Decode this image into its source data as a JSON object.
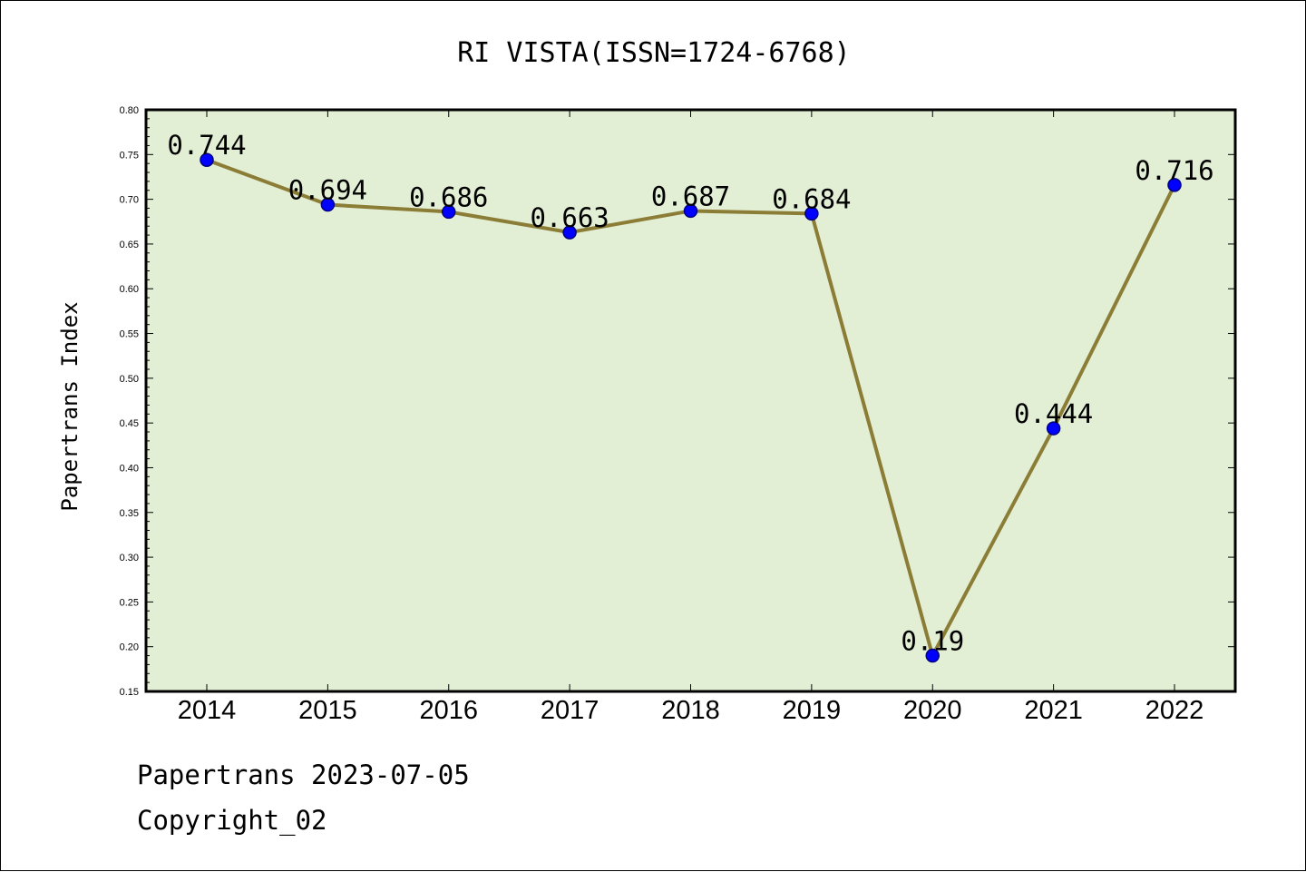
{
  "chart_data": {
    "type": "line",
    "title": "RI VISTA(ISSN=1724-6768)",
    "xlabel": "",
    "ylabel": "Papertrans Index",
    "categories": [
      "2014",
      "2015",
      "2016",
      "2017",
      "2018",
      "2019",
      "2020",
      "2021",
      "2022"
    ],
    "values": [
      0.744,
      0.694,
      0.686,
      0.663,
      0.687,
      0.684,
      0.19,
      0.444,
      0.716
    ],
    "data_labels": [
      "0.744",
      "0.694",
      "0.686",
      "0.663",
      "0.687",
      "0.684",
      "0.19",
      "0.444",
      "0.716"
    ],
    "ylim": [
      0.15,
      0.8
    ],
    "yticks": [
      "0.15",
      "0.20",
      "0.25",
      "0.30",
      "0.35",
      "0.40",
      "0.45",
      "0.50",
      "0.55",
      "0.60",
      "0.65",
      "0.70",
      "0.75",
      "0.80"
    ],
    "grid": false,
    "legend": "none",
    "colors": {
      "plot_background": "#e2efd5",
      "line": "#8b7d36",
      "marker": "#0000ff",
      "marker_edge": "#000080"
    }
  },
  "footer": {
    "line1": "Papertrans 2023-07-05",
    "line2": "Copyright_02"
  }
}
